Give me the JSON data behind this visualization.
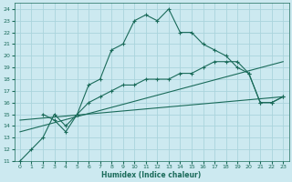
{
  "xlabel": "Humidex (Indice chaleur)",
  "bg_color": "#cce9f0",
  "grid_color": "#aad4dc",
  "line_color": "#1a6b5a",
  "xlim": [
    -0.5,
    23.5
  ],
  "ylim": [
    11,
    24.5
  ],
  "xticks": [
    0,
    1,
    2,
    3,
    4,
    5,
    6,
    7,
    8,
    9,
    10,
    11,
    12,
    13,
    14,
    15,
    16,
    17,
    18,
    19,
    20,
    21,
    22,
    23
  ],
  "yticks": [
    11,
    12,
    13,
    14,
    15,
    16,
    17,
    18,
    19,
    20,
    21,
    22,
    23,
    24
  ],
  "line1_x": [
    0,
    1,
    2,
    3,
    4,
    5,
    6,
    7,
    8,
    9,
    10,
    11,
    12,
    13,
    14,
    15,
    16,
    17,
    18,
    19,
    20,
    21,
    22,
    23
  ],
  "line1_y": [
    11,
    12,
    13,
    15,
    14,
    15,
    17.5,
    18,
    20.5,
    21,
    23,
    23.5,
    23,
    24,
    22,
    22,
    21,
    20.5,
    20,
    19,
    18.5,
    16,
    16,
    16.5
  ],
  "line2_x": [
    2,
    3,
    4,
    5,
    6,
    7,
    8,
    9,
    10,
    11,
    12,
    13,
    14,
    15,
    16,
    17,
    18,
    19,
    20,
    21,
    22,
    23
  ],
  "line2_y": [
    15,
    14.5,
    13.5,
    15,
    16,
    16.5,
    17,
    17.5,
    17.5,
    18,
    18,
    18,
    18.5,
    18.5,
    19,
    19.5,
    19.5,
    19.5,
    18.5,
    16,
    16,
    16.5
  ],
  "line3_x": [
    0,
    23
  ],
  "line3_y": [
    13.5,
    19.5
  ],
  "line4_x": [
    0,
    23
  ],
  "line4_y": [
    14.5,
    16.5
  ]
}
